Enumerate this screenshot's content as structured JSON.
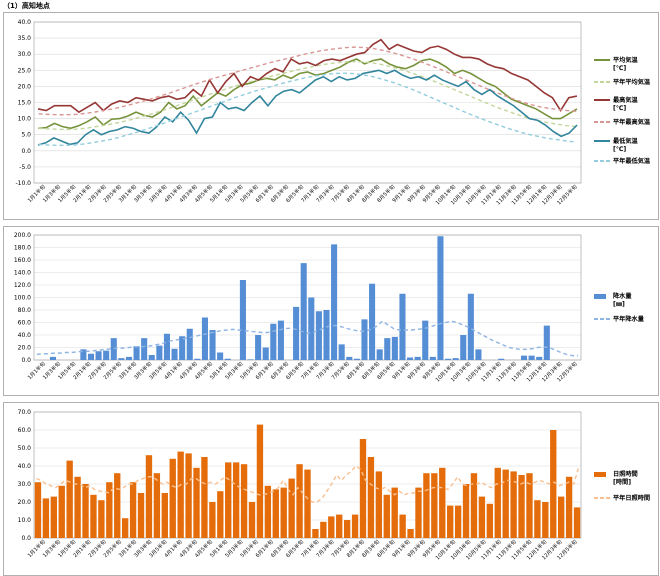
{
  "page_title": "（1）高知地点",
  "x_labels": [
    "1月1半旬",
    "1月3半旬",
    "1月5半旬",
    "2月1半旬",
    "2月3半旬",
    "2月5半旬",
    "3月1半旬",
    "3月3半旬",
    "3月5半旬",
    "4月1半旬",
    "4月3半旬",
    "4月5半旬",
    "5月1半旬",
    "5月3半旬",
    "5月5半旬",
    "6月1半旬",
    "6月3半旬",
    "6月5半旬",
    "7月1半旬",
    "7月3半旬",
    "7月5半旬",
    "8月1半旬",
    "8月3半旬",
    "8月5半旬",
    "9月1半旬",
    "9月3半旬",
    "9月5半旬",
    "10月1半旬",
    "10月3半旬",
    "10月5半旬",
    "11月1半旬",
    "11月3半旬",
    "11月5半旬",
    "12月1半旬",
    "12月3半旬",
    "12月5半旬"
  ],
  "chart_data": [
    {
      "type": "line",
      "ylim": [
        -10,
        40
      ],
      "yticks": [
        "-10.0",
        "-5.0",
        "0.0",
        "5.0",
        "10.0",
        "15.0",
        "20.0",
        "25.0",
        "30.0",
        "35.0",
        "40.0"
      ],
      "series": [
        {
          "name": "平均気温\n[℃]",
          "color": "#77933c",
          "style": "solid",
          "values": [
            7,
            7.2,
            8.5,
            7.5,
            7,
            7.8,
            9,
            10.5,
            8,
            9.8,
            10,
            10.8,
            12,
            11,
            10.5,
            12,
            15,
            13,
            14,
            17,
            14,
            16,
            18,
            17,
            19,
            20.5,
            21,
            22,
            22.5,
            22,
            23.5,
            22.5,
            24,
            24.5,
            23.5,
            24,
            25,
            26,
            27.5,
            28.5,
            27,
            28,
            28.5,
            27,
            26,
            25.5,
            26.5,
            28,
            28.5,
            27.5,
            26,
            24,
            25,
            24,
            22.5,
            21,
            20,
            18,
            16,
            15,
            14,
            13,
            11.5,
            10,
            10,
            11.5,
            13
          ]
        },
        {
          "name": "平年平均気温",
          "color": "#c3d69b",
          "style": "dash",
          "values": [
            7,
            6.8,
            6.7,
            6.6,
            6.7,
            7,
            7.4,
            7.9,
            8.4,
            9,
            9.7,
            10.5,
            11.3,
            12.2,
            13.1,
            14.1,
            15.1,
            16.1,
            17.1,
            18.1,
            19,
            19.9,
            20.8,
            21.6,
            22.4,
            23.1,
            23.8,
            24.5,
            25.2,
            25.8,
            26.4,
            26.9,
            27.3,
            27.6,
            27.7,
            27.6,
            27.3,
            26.8,
            26.1,
            25.3,
            24.4,
            23.4,
            22.3,
            21.2,
            20,
            18.8,
            17.6,
            16.4,
            15.2,
            14,
            12.9,
            11.9,
            10.9,
            10,
            9.3,
            8.7,
            8.2,
            7.8,
            7.5
          ]
        },
        {
          "name": "最高気温\n[℃]",
          "color": "#953735",
          "style": "solid",
          "values": [
            13,
            12.5,
            14,
            14,
            14,
            12,
            13.5,
            15,
            12.5,
            14.5,
            15.5,
            15,
            16.5,
            16,
            15.5,
            16.5,
            17,
            16,
            16.5,
            19,
            17,
            22,
            18,
            21.5,
            24,
            20,
            23,
            22,
            24,
            25.5,
            24.5,
            28.5,
            27,
            27.5,
            26.5,
            28,
            28.5,
            28,
            29,
            30,
            30.5,
            33,
            34.5,
            31.5,
            33,
            32,
            31,
            30.5,
            32,
            32.5,
            31.5,
            30,
            29,
            29,
            28.5,
            27,
            26,
            25.5,
            24,
            23,
            22,
            20,
            18,
            16.5,
            12.5,
            16.5,
            17
          ]
        },
        {
          "name": "平年最高気温",
          "color": "#d99694",
          "style": "dash",
          "values": [
            11.5,
            11.3,
            11.2,
            11.2,
            11.3,
            11.6,
            12,
            12.5,
            13,
            13.7,
            14.4,
            15.2,
            16,
            16.9,
            17.8,
            18.8,
            19.8,
            20.8,
            21.7,
            22.6,
            23.4,
            24.2,
            25,
            25.8,
            26.6,
            27.4,
            28.1,
            28.8,
            29.5,
            30.2,
            30.8,
            31.3,
            31.7,
            32,
            32.2,
            32.1,
            31.8,
            31.3,
            30.6,
            29.8,
            28.9,
            27.9,
            26.8,
            25.7,
            24.5,
            23.3,
            22.1,
            20.9,
            19.7,
            18.5,
            17.4,
            16.3,
            15.3,
            14.4,
            13.7,
            13.2,
            12.8,
            12.5,
            12.3
          ]
        },
        {
          "name": "最低気温\n[℃]",
          "color": "#31859c",
          "style": "solid",
          "values": [
            1.8,
            2.5,
            4,
            3,
            2,
            2.5,
            5,
            6.5,
            5,
            6,
            6.5,
            7.5,
            7,
            6,
            5.5,
            7.5,
            10.5,
            9,
            12,
            9.5,
            5.5,
            10,
            10.5,
            15,
            13,
            13.5,
            12.5,
            15,
            17,
            14,
            17,
            18.5,
            19,
            18,
            20,
            22,
            23,
            21.5,
            23,
            22,
            22.5,
            24,
            24.5,
            25,
            24,
            25,
            23.5,
            22.5,
            23,
            22,
            23.5,
            22,
            21,
            20,
            21.5,
            19,
            17.5,
            19,
            17,
            15.5,
            14,
            12,
            10,
            9.5,
            8,
            6,
            4.5,
            5.5,
            8
          ]
        },
        {
          "name": "平年最低気温",
          "color": "#93cddd",
          "style": "dash",
          "values": [
            2,
            1.8,
            1.7,
            1.7,
            1.8,
            2.1,
            2.5,
            3,
            3.5,
            4.2,
            5,
            5.8,
            6.7,
            7.6,
            8.6,
            9.6,
            10.6,
            11.6,
            12.6,
            13.6,
            14.6,
            15.6,
            16.6,
            17.5,
            18.4,
            19.2,
            20,
            20.8,
            21.5,
            22.2,
            22.8,
            23.3,
            23.7,
            24,
            24.1,
            24,
            23.7,
            23.2,
            22.5,
            21.7,
            20.8,
            19.8,
            18.7,
            17.5,
            16.3,
            15.1,
            13.9,
            12.7,
            11.5,
            10.4,
            9.3,
            8.3,
            7.3,
            6.4,
            5.6,
            4.9,
            4.3,
            3.8,
            3.4,
            3,
            2.7
          ]
        }
      ]
    },
    {
      "type": "bar",
      "ylim": [
        0,
        200
      ],
      "yticks": [
        "0.0",
        "20.0",
        "40.0",
        "60.0",
        "80.0",
        "100.0",
        "120.0",
        "140.0",
        "160.0",
        "180.0",
        "200.0"
      ],
      "bar": {
        "name": "降水量\n[㎜]",
        "color": "#558ed5",
        "values": [
          0,
          0,
          5,
          0,
          0,
          0,
          17,
          10,
          14,
          15,
          35,
          3,
          5,
          22,
          35,
          8,
          23,
          42,
          18,
          38,
          50,
          2,
          68,
          48,
          12,
          2,
          0,
          128,
          1,
          40,
          20,
          58,
          63,
          0,
          85,
          155,
          100,
          78,
          80,
          185,
          25,
          5,
          2,
          65,
          122,
          17,
          35,
          37,
          106,
          4,
          5,
          63,
          5,
          198,
          2,
          3,
          40,
          106,
          17,
          0,
          0,
          2,
          0,
          0,
          7,
          7,
          5,
          55,
          0,
          0,
          0,
          0
        ]
      },
      "line": {
        "name": "平年降水量",
        "color": "#8eb4e3",
        "values": [
          9,
          10,
          10,
          11,
          11,
          12,
          12,
          13,
          14,
          14,
          15,
          16,
          17,
          18,
          19,
          19,
          20,
          21,
          21,
          22,
          23,
          25,
          27,
          30,
          32,
          33,
          35,
          37,
          39,
          41,
          43,
          45,
          47,
          48,
          49,
          48,
          47,
          46,
          45,
          44,
          44,
          46,
          48,
          50,
          51,
          49,
          46,
          43,
          44,
          48,
          52,
          55,
          55,
          53,
          50,
          48,
          46,
          46,
          49,
          54,
          62,
          56,
          50,
          48,
          48,
          48,
          49,
          50,
          52,
          55,
          58,
          60,
          62,
          60,
          56,
          52,
          47,
          42,
          37,
          32,
          28,
          24,
          20,
          18,
          17,
          17,
          18,
          20,
          21,
          20,
          16,
          12,
          9,
          7,
          7
        ]
      }
    },
    {
      "type": "bar",
      "ylim": [
        0,
        70
      ],
      "yticks": [
        "0.0",
        "10.0",
        "20.0",
        "30.0",
        "40.0",
        "50.0",
        "60.0",
        "70.0"
      ],
      "bar": {
        "name": "日照時間\n[時間]",
        "color": "#e46c0a",
        "values": [
          31,
          22,
          23,
          29,
          43,
          34,
          30,
          24,
          21,
          31,
          36,
          11,
          31,
          25,
          46,
          36,
          25,
          44,
          48,
          47,
          39,
          45,
          20,
          26,
          42,
          42,
          41,
          20,
          63,
          29,
          27,
          28,
          33,
          41,
          38,
          5,
          9,
          12,
          13,
          10,
          13,
          55,
          45,
          37,
          24,
          28,
          13,
          5,
          28,
          36,
          36,
          39,
          18,
          18,
          30,
          36,
          23,
          19,
          39,
          38,
          37,
          35,
          36,
          21,
          20,
          60,
          23,
          34,
          17
        ]
      },
      "line": {
        "name": "平年日照時間",
        "color": "#fac090",
        "values": [
          33,
          32,
          30,
          29,
          28,
          30,
          32,
          31,
          30,
          30,
          28,
          29,
          27,
          26,
          26,
          25,
          28,
          27,
          28,
          30,
          30,
          32,
          33,
          34,
          34,
          32,
          30,
          31,
          29,
          28,
          30,
          30,
          33,
          33,
          31,
          30,
          31,
          30,
          32,
          34,
          32,
          30,
          28,
          27,
          26,
          25,
          24,
          24,
          25,
          26,
          28,
          32,
          27,
          24,
          28,
          25,
          22,
          20,
          20,
          22,
          26,
          30,
          35,
          32,
          35,
          37,
          40,
          38,
          32,
          30,
          28,
          27,
          28,
          26,
          24,
          26,
          24,
          25,
          25,
          26,
          26,
          27,
          28,
          28,
          28,
          27,
          30,
          34,
          30,
          29,
          30,
          30,
          31,
          29,
          28,
          30,
          30,
          32,
          32,
          31,
          30,
          31,
          30,
          31,
          32,
          31,
          30,
          31,
          29,
          30,
          31,
          30,
          39
        ]
      }
    }
  ]
}
